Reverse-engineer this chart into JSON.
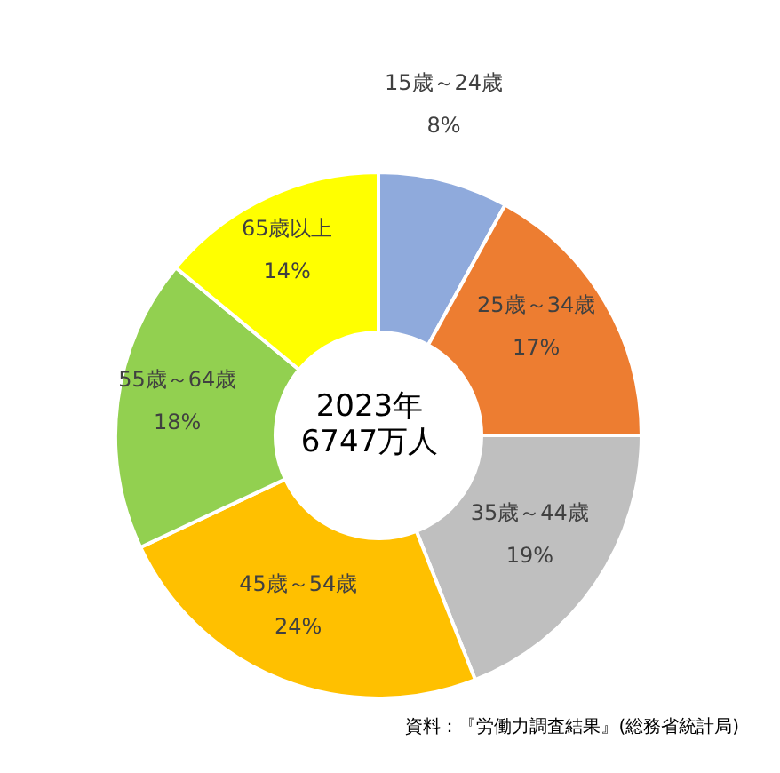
{
  "chart_data": {
    "type": "donut",
    "categories": [
      "15歳～24歳",
      "25歳～34歳",
      "35歳～44歳",
      "45歳～54歳",
      "55歳～64歳",
      "65歳以上"
    ],
    "values": [
      8,
      17,
      19,
      24,
      18,
      14
    ],
    "value_labels": [
      "8%",
      "17%",
      "19%",
      "24%",
      "18%",
      "14%"
    ],
    "colors": [
      "#8faadc",
      "#ed7d31",
      "#bfbfbf",
      "#ffc000",
      "#92d050",
      "#ffff00"
    ],
    "data_labels": true,
    "annotations": [
      "2023年",
      "6747万人",
      "資料：『労働力調査結果』(総務省統計局)"
    ]
  }
}
